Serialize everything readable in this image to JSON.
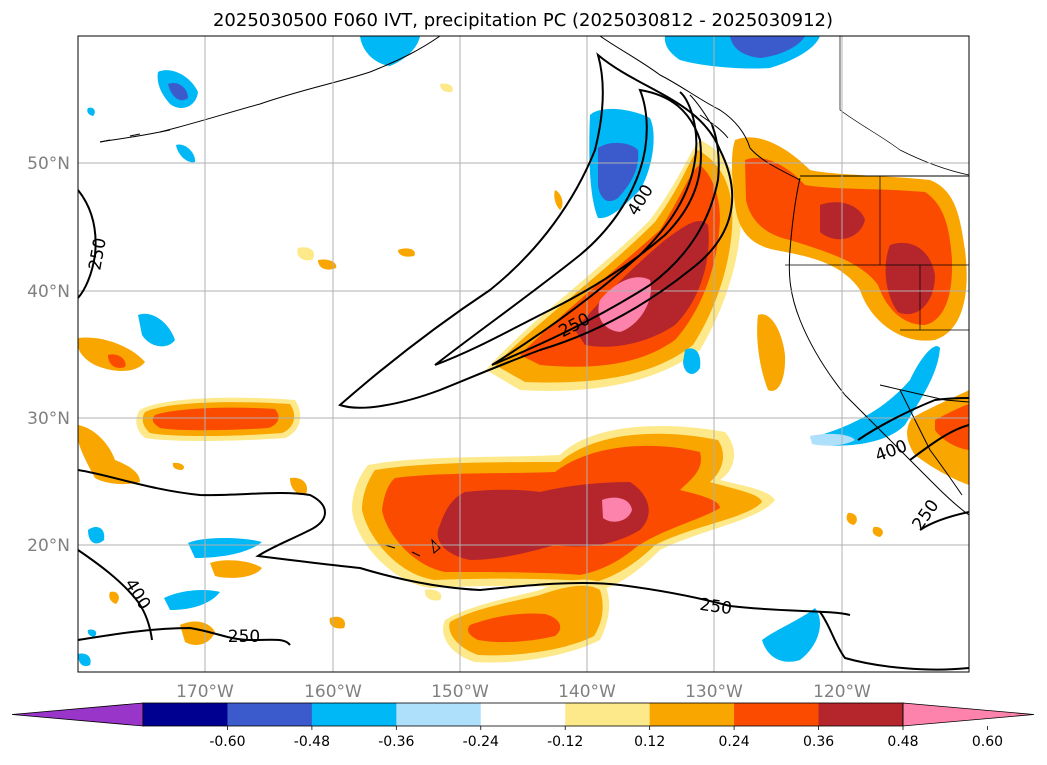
{
  "title": "2025030500 F060 IVT, precipitation PC (2025030812 - 2025030912)",
  "map": {
    "lon_ticks": [
      {
        "lon": -170,
        "label": "170°W"
      },
      {
        "lon": -160,
        "label": "160°W"
      },
      {
        "lon": -150,
        "label": "150°W"
      },
      {
        "lon": -140,
        "label": "140°W"
      },
      {
        "lon": -130,
        "label": "130°W"
      },
      {
        "lon": -120,
        "label": "120°W"
      }
    ],
    "lat_ticks": [
      {
        "lat": 50,
        "label": "50°N"
      },
      {
        "lat": 40,
        "label": "40°N"
      },
      {
        "lat": 30,
        "label": "30°N"
      },
      {
        "lat": 20,
        "label": "20°N"
      }
    ],
    "ivt_contour_labels": [
      "250",
      "400",
      "250",
      "400",
      "250",
      "250",
      "400",
      "250"
    ],
    "gridlines": true
  },
  "colorbar": {
    "levels": [
      "-0.60",
      "-0.48",
      "-0.36",
      "-0.24",
      "-0.12",
      "0.12",
      "0.24",
      "0.36",
      "0.48",
      "0.60"
    ],
    "colors": [
      "#9a35c9",
      "#000090",
      "#3b5bcc",
      "#00b8f5",
      "#aee0fb",
      "#ffffff",
      "#fde98a",
      "#f9a600",
      "#fb4b00",
      "#b4262b",
      "#fd82ac"
    ],
    "extend": "both"
  }
}
